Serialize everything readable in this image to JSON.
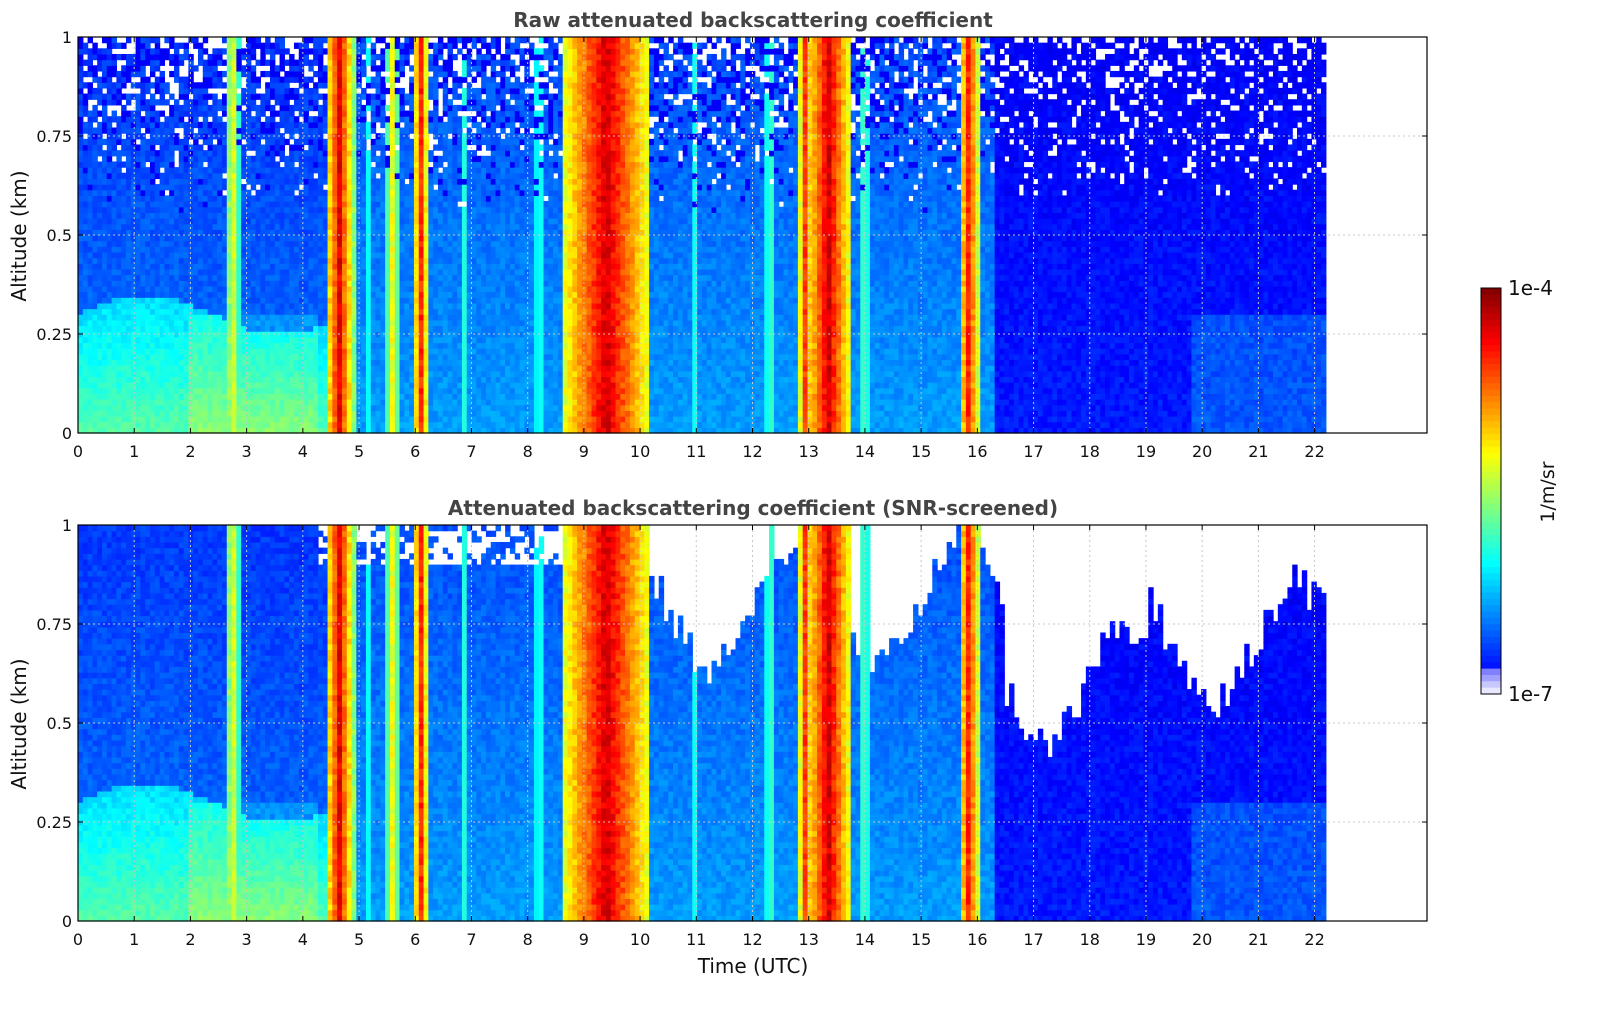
{
  "chart_data": [
    {
      "type": "heatmap",
      "title": "Raw attenuated backscattering coefficient",
      "xlabel": "",
      "ylabel": "Altitude (km)",
      "xlim": [
        0,
        24
      ],
      "ylim": [
        0,
        1
      ],
      "data_xlim": [
        0,
        22.2
      ],
      "xticks": [
        0,
        1,
        2,
        3,
        4,
        5,
        6,
        7,
        8,
        9,
        10,
        11,
        12,
        13,
        14,
        15,
        16,
        17,
        18,
        19,
        20,
        21,
        22
      ],
      "yticks": [
        0,
        0.25,
        0.5,
        0.75,
        1
      ],
      "ytick_labels": [
        "0",
        "0.25",
        "0.5",
        "0.75",
        "1"
      ],
      "grid": true,
      "screened": false
    },
    {
      "type": "heatmap",
      "title": "Attenuated backscattering coefficient (SNR-screened)",
      "xlabel": "Time (UTC)",
      "ylabel": "Altitude (km)",
      "xlim": [
        0,
        24
      ],
      "ylim": [
        0,
        1
      ],
      "data_xlim": [
        0,
        22.2
      ],
      "xticks": [
        0,
        1,
        2,
        3,
        4,
        5,
        6,
        7,
        8,
        9,
        10,
        11,
        12,
        13,
        14,
        15,
        16,
        17,
        18,
        19,
        20,
        21,
        22
      ],
      "yticks": [
        0,
        0.25,
        0.5,
        0.75,
        1
      ],
      "ytick_labels": [
        "0",
        "0.25",
        "0.5",
        "0.75",
        "1"
      ],
      "grid": true,
      "screened": true
    }
  ],
  "field": {
    "cloud_bands": [
      {
        "t": 2.75,
        "w": 0.12,
        "level": 0.62
      },
      {
        "t": 4.65,
        "w": 0.22,
        "level": 0.9
      },
      {
        "t": 4.9,
        "w": 0.05,
        "level": 0.55
      },
      {
        "t": 5.2,
        "w": 0.05,
        "level": 0.5
      },
      {
        "t": 5.6,
        "w": 0.12,
        "level": 0.62
      },
      {
        "t": 6.1,
        "w": 0.12,
        "level": 0.85
      },
      {
        "t": 6.9,
        "w": 0.05,
        "level": 0.5
      },
      {
        "t": 8.2,
        "w": 0.06,
        "level": 0.5
      },
      {
        "t": 9.4,
        "w": 0.75,
        "level": 0.92
      },
      {
        "t": 9.9,
        "w": 0.07,
        "level": 0.6
      },
      {
        "t": 11.0,
        "w": 0.05,
        "level": 0.48
      },
      {
        "t": 12.3,
        "w": 0.05,
        "level": 0.58
      },
      {
        "t": 12.95,
        "w": 0.12,
        "level": 0.85
      },
      {
        "t": 13.35,
        "w": 0.38,
        "level": 0.92
      },
      {
        "t": 14.0,
        "w": 0.06,
        "level": 0.55
      },
      {
        "t": 15.85,
        "w": 0.17,
        "level": 0.86
      }
    ],
    "boundary_layer_top_km": 0.3,
    "screened_clear_region_km": 0.7
  },
  "colorbar": {
    "min_label": "1e-7",
    "max_label": "1e-4",
    "unit": "1/m/sr",
    "colormap": "jet"
  },
  "colors": {
    "low": "#0a1fe8",
    "mid": "#28c8ff",
    "high": "#d00000",
    "grid": "#c8c8c8"
  }
}
